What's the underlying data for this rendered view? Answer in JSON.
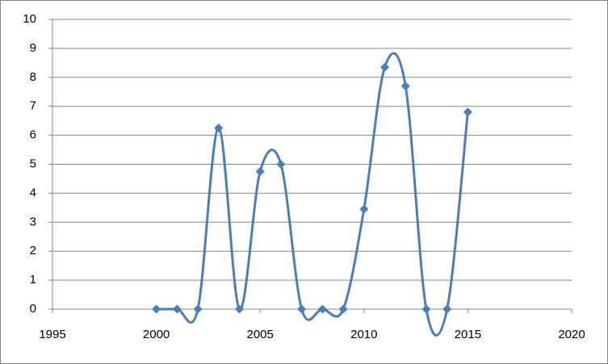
{
  "chart_data": {
    "type": "scatter",
    "smooth": true,
    "markers": "diamond",
    "color": "#4a7ebb",
    "x": [
      2000,
      2001,
      2002,
      2003,
      2004,
      2005,
      2006,
      2007,
      2008,
      2009,
      2010,
      2011,
      2012,
      2013,
      2014,
      2015
    ],
    "values": [
      0,
      0,
      0,
      6.25,
      0,
      4.75,
      5,
      0,
      0,
      0,
      3.45,
      8.35,
      7.7,
      0,
      0,
      6.8
    ],
    "xlim": [
      1995,
      2020
    ],
    "xticks": [
      1995,
      2000,
      2005,
      2010,
      2015,
      2020
    ],
    "ylim": [
      0,
      10
    ],
    "yticks": [
      0,
      1,
      2,
      3,
      4,
      5,
      6,
      7,
      8,
      9,
      10
    ],
    "grid": true
  }
}
